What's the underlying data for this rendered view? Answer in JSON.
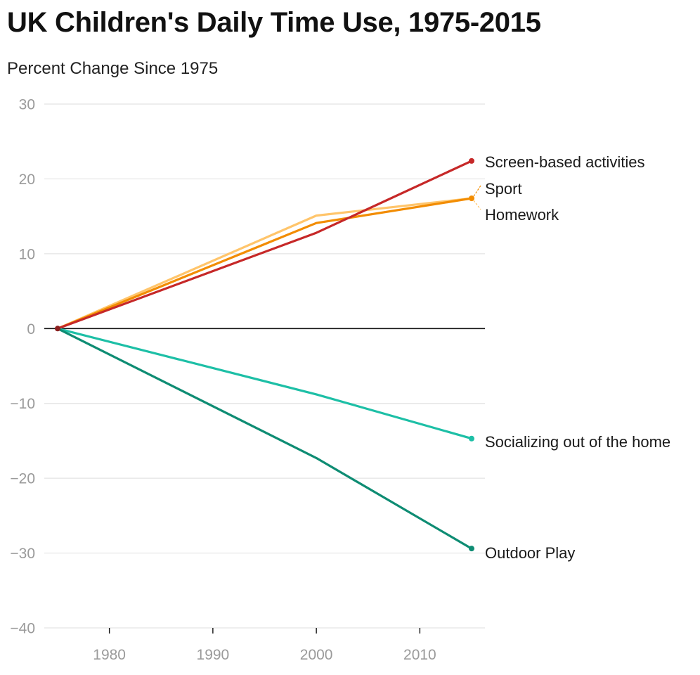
{
  "title": "UK Children's Daily Time Use, 1975-2015",
  "subtitle": "Percent Change Since 1975",
  "chart_data": {
    "type": "line",
    "title": "UK Children's Daily Time Use, 1975-2015",
    "subtitle": "Percent Change Since 1975",
    "xlabel": "",
    "ylabel": "",
    "xlim": [
      1974,
      2016
    ],
    "ylim": [
      -40,
      30
    ],
    "x_ticks": [
      1980,
      1990,
      2000,
      2010
    ],
    "y_ticks": [
      30,
      20,
      10,
      0,
      -10,
      -20,
      -30,
      -40
    ],
    "y_tick_labels": [
      "30",
      "20",
      "10",
      "0",
      "−10",
      "−20",
      "−30",
      "−40"
    ],
    "grid": true,
    "legend": "direct labels at right end of lines",
    "series": [
      {
        "name": "Homework",
        "color": "#ffc56b",
        "x": [
          1975,
          2000,
          2015
        ],
        "y": [
          0,
          15.1,
          17.4
        ]
      },
      {
        "name": "Sport",
        "color": "#f28c00",
        "x": [
          1975,
          2000,
          2015
        ],
        "y": [
          0,
          14.1,
          17.4
        ]
      },
      {
        "name": "Screen-based activities",
        "color": "#c62828",
        "x": [
          1975,
          2000,
          2015
        ],
        "y": [
          0,
          12.8,
          22.4
        ]
      },
      {
        "name": "Socializing out of the home",
        "color": "#1dbfa6",
        "x": [
          1975,
          2000,
          2015
        ],
        "y": [
          0,
          -8.8,
          -14.7
        ]
      },
      {
        "name": "Outdoor Play",
        "color": "#0e8c73",
        "x": [
          1975,
          2000,
          2015
        ],
        "y": [
          0,
          -17.3,
          -29.4
        ]
      }
    ]
  }
}
